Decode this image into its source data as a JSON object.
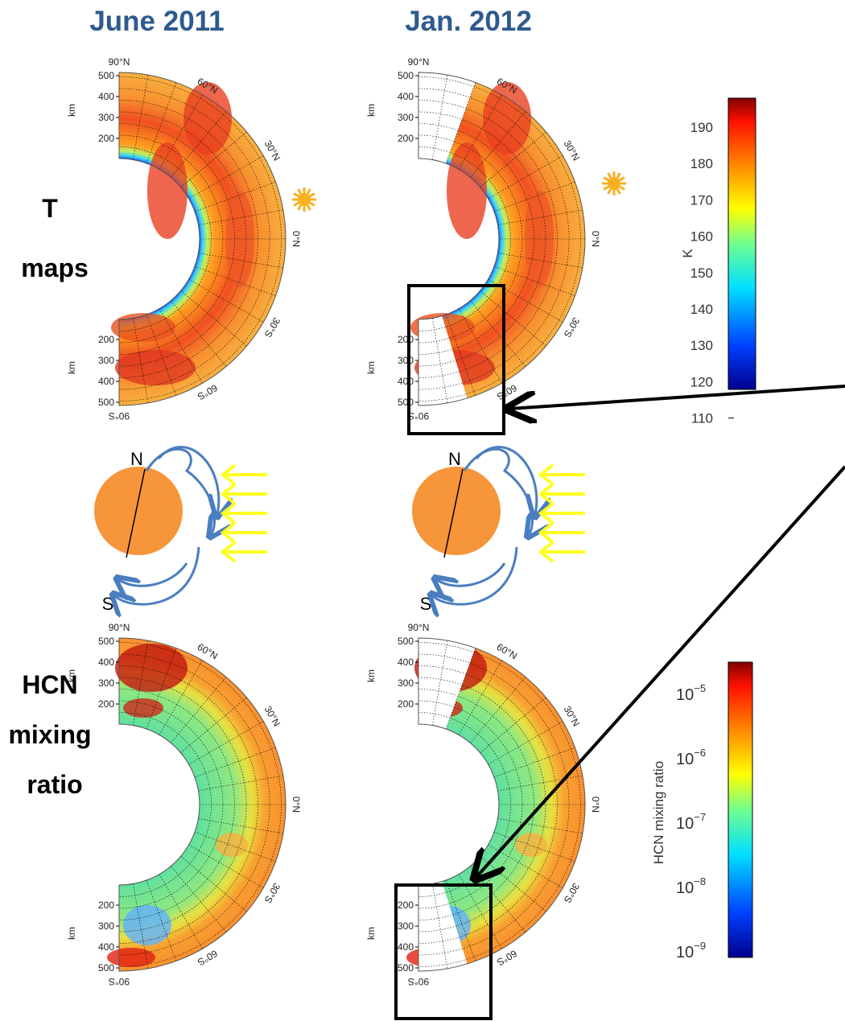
{
  "columns": [
    "June 2011",
    "Jan. 2012"
  ],
  "rows": [
    {
      "label": [
        "T",
        "maps"
      ]
    },
    {
      "label": [
        "HCN",
        "mixing",
        "ratio"
      ]
    }
  ],
  "map_axis": {
    "unit": "km",
    "altitudes": [
      "500",
      "400",
      "300",
      "200"
    ],
    "latitudes": [
      "90°N",
      "60°N",
      "30°N",
      "0°N",
      "30°S",
      "60°S",
      "90°S"
    ]
  },
  "temperature_scale": {
    "label": "K",
    "ticks": [
      "190",
      "180",
      "170",
      "160",
      "150",
      "140",
      "130",
      "120",
      "110"
    ]
  },
  "hcn_scale": {
    "label": "HCN mixing ratio",
    "ticks": [
      {
        "base": "10",
        "exp": "−5"
      },
      {
        "base": "10",
        "exp": "−6"
      },
      {
        "base": "10",
        "exp": "−7"
      },
      {
        "base": "10",
        "exp": "−8"
      },
      {
        "base": "10",
        "exp": "−9"
      }
    ]
  },
  "poles": [
    "N",
    "S"
  ]
}
